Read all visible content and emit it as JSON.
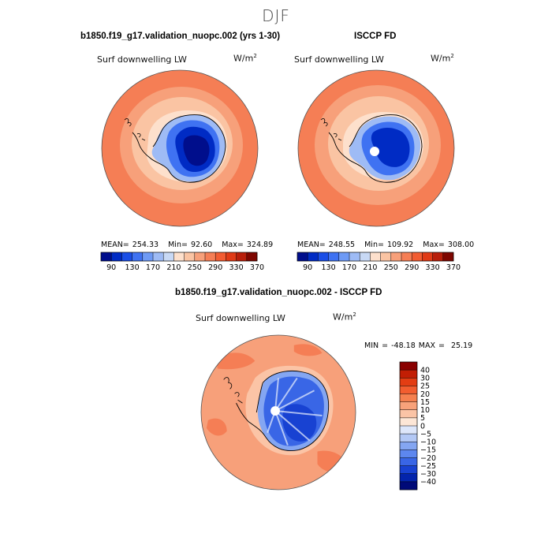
{
  "figure": {
    "season": "DJF",
    "variable": "Surf downwelling LW",
    "units_prefix": "W/m",
    "units_exp": "2"
  },
  "panel_model": {
    "title": "b1850.f19_g17.validation_nuopc.002 (yrs 1-30)",
    "stats": {
      "mean_label": "MEAN=",
      "mean": "254.33",
      "min_label": "Min=",
      "min": "92.60",
      "max_label": "Max=",
      "max": "324.89"
    }
  },
  "panel_obs": {
    "title": "ISCCP FD",
    "stats": {
      "mean_label": "MEAN=",
      "mean": "248.55",
      "min_label": "Min=",
      "min": "109.92",
      "max_label": "Max=",
      "max": "308.00"
    }
  },
  "panel_diff": {
    "title": "b1850.f19_g17.validation_nuopc.002 - ISCCP FD",
    "minmax": {
      "min_label": "MIN =",
      "min": "-48.18",
      "max_label": "MAX =",
      "max": "25.19"
    }
  },
  "colorbar_abs": {
    "labels": [
      "90",
      "130",
      "170",
      "210",
      "250",
      "290",
      "330",
      "370"
    ],
    "colors": [
      "#000e8c",
      "#002bc4",
      "#1a4ee6",
      "#3f72f2",
      "#6e9af5",
      "#9ebbf5",
      "#c8d9f5",
      "#fde0cc",
      "#fac4a3",
      "#f7a07a",
      "#f57e55",
      "#f25c32",
      "#e03a16",
      "#b81e0a",
      "#7e0600"
    ]
  },
  "colorbar_diff": {
    "labels": [
      "40",
      "30",
      "25",
      "20",
      "15",
      "10",
      "5",
      "0",
      "−5",
      "−10",
      "−15",
      "−20",
      "−25",
      "−30",
      "−40"
    ],
    "colors": [
      "#8a0000",
      "#c21e04",
      "#e33d13",
      "#f25d2f",
      "#f5804f",
      "#f8a27a",
      "#fbc4a6",
      "#fde6d6",
      "#dde6fa",
      "#b3c8f5",
      "#84a6f2",
      "#5d87ef",
      "#3966e6",
      "#1842d2",
      "#0324ac",
      "#000a78"
    ]
  },
  "map_colors": {
    "ocean_outer": "#f57e55",
    "ocean_mid": "#f7a07a",
    "ocean_inner": "#fac4a3",
    "ocean_near_ice": "#fde0cc",
    "ice_edge": "#9ebbf5",
    "ice_mid": "#3f72f2",
    "ice_deep": "#002bc4",
    "ice_core": "#000e8c",
    "diff_ocean": "#f7a07a",
    "diff_ocean_warm": "#f57e55",
    "diff_coast": "#fbc4a6",
    "diff_ice_edge": "#84a6f2",
    "diff_ice": "#3966e6",
    "diff_ice_deep": "#1842d2",
    "coastline": "#000000"
  }
}
